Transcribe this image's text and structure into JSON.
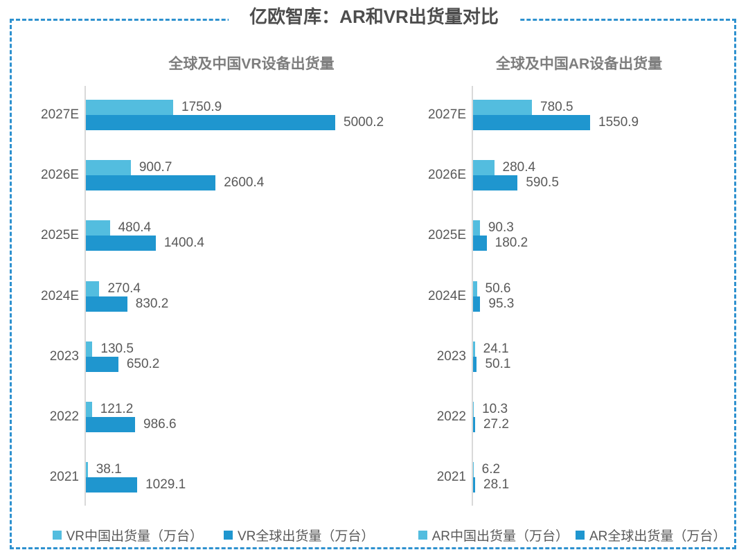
{
  "page": {
    "title": "亿欧智库：AR和VR出货量对比"
  },
  "colors": {
    "china_series": "#53bddf",
    "global_series": "#1f96cf",
    "border_dash": "#2e91cf",
    "title_text": "#4d4d4d",
    "subtitle_text": "#7d7d7d",
    "label_text": "#595959",
    "axis_line": "#d9d9d9"
  },
  "chart_data": [
    {
      "type": "bar",
      "orientation": "horizontal",
      "title": "全球及中国VR设备出货量",
      "categories": [
        "2027E",
        "2026E",
        "2025E",
        "2024E",
        "2023",
        "2022",
        "2021"
      ],
      "series": [
        {
          "name": "VR中国出货量（万台）",
          "color": "#53bddf",
          "values": [
            1750.9,
            900.7,
            480.4,
            270.4,
            130.5,
            121.2,
            38.1
          ]
        },
        {
          "name": "VR全球出货量（万台）",
          "color": "#1f96cf",
          "values": [
            5000.2,
            2600.4,
            1400.4,
            830.2,
            650.2,
            986.6,
            1029.1
          ]
        }
      ],
      "xlim": [
        0,
        5000.2
      ],
      "value_labels": true,
      "grid": false,
      "legend_position": "bottom"
    },
    {
      "type": "bar",
      "orientation": "horizontal",
      "title": "全球及中国AR设备出货量",
      "categories": [
        "2027E",
        "2026E",
        "2025E",
        "2024E",
        "2023",
        "2022",
        "2021"
      ],
      "series": [
        {
          "name": "AR中国出货量（万台）",
          "color": "#53bddf",
          "values": [
            780.5,
            280.4,
            90.3,
            50.6,
            24.1,
            10.3,
            6.2
          ]
        },
        {
          "name": "AR全球出货量（万台）",
          "color": "#1f96cf",
          "values": [
            1550.9,
            590.5,
            180.2,
            95.3,
            50.1,
            27.2,
            28.1
          ]
        }
      ],
      "xlim": [
        0,
        1550.9
      ],
      "value_labels": true,
      "grid": false,
      "legend_position": "bottom"
    }
  ]
}
